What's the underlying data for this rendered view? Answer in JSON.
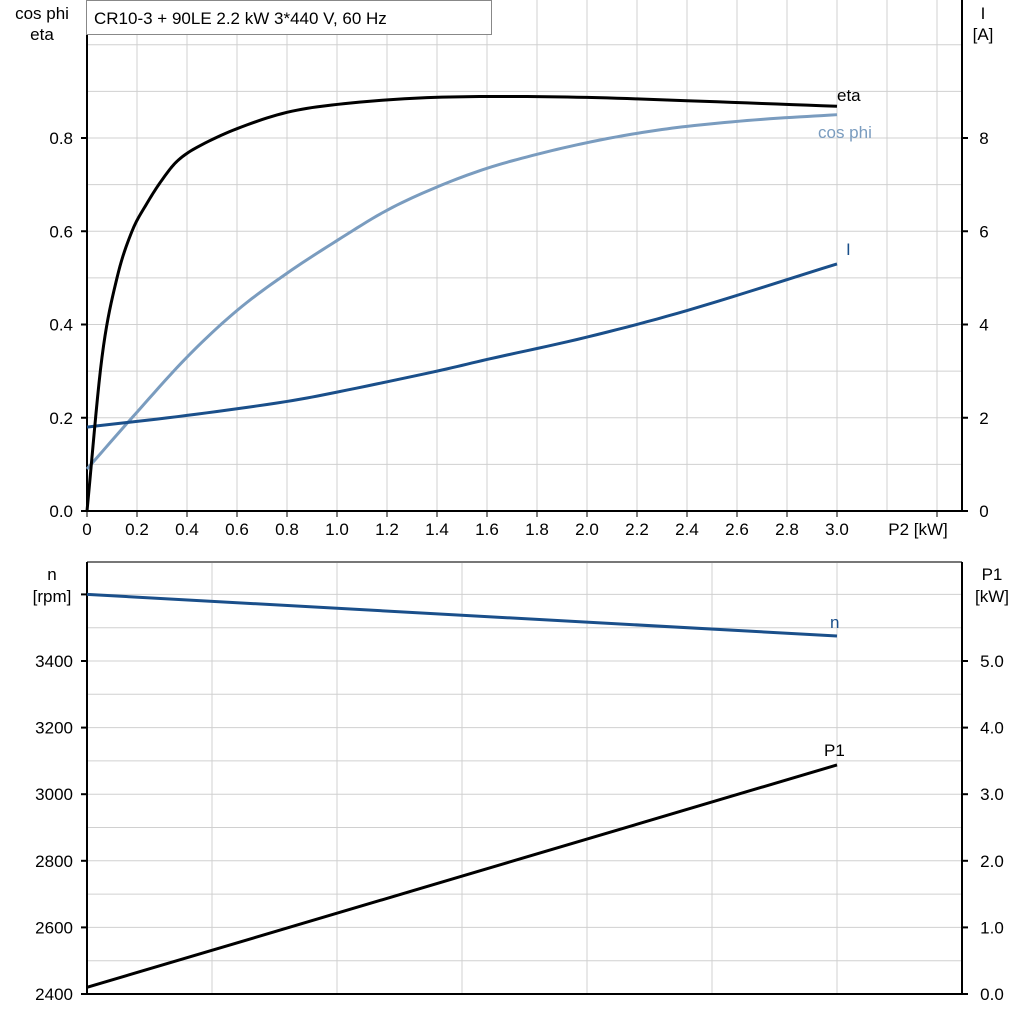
{
  "chart_data": [
    {
      "type": "line",
      "title": "CR10-3 + 90LE   2.2 kW   3*440 V, 60 Hz",
      "xlabel": "P2 [kW]",
      "ylabel_left": [
        "cos phi",
        "eta"
      ],
      "ylabel_right": [
        "I",
        "[A]"
      ],
      "xlim": [
        0,
        3.5
      ],
      "ylim_left": [
        0,
        1.1
      ],
      "ylim_right": [
        0,
        11
      ],
      "x_ticks": [
        "0",
        "0.2",
        "0.4",
        "0.6",
        "0.8",
        "1.0",
        "1.2",
        "1.4",
        "1.6",
        "1.8",
        "2.0",
        "2.2",
        "2.4",
        "2.6",
        "2.8",
        "3.0"
      ],
      "y_ticks_left": [
        "0.0",
        "0.2",
        "0.4",
        "0.6",
        "0.8"
      ],
      "y_ticks_right": [
        "0",
        "2",
        "4",
        "6",
        "8"
      ],
      "grid": true,
      "series": [
        {
          "name": "eta",
          "axis": "left",
          "color": "#000000",
          "x": [
            0,
            0.06,
            0.12,
            0.18,
            0.24,
            0.3,
            0.36,
            0.44,
            0.6,
            0.8,
            1.0,
            1.3,
            1.6,
            2.0,
            2.4,
            3.0
          ],
          "y": [
            0,
            0.33,
            0.5,
            0.6,
            0.66,
            0.71,
            0.75,
            0.78,
            0.82,
            0.855,
            0.872,
            0.885,
            0.889,
            0.887,
            0.88,
            0.868
          ]
        },
        {
          "name": "cos phi",
          "axis": "left",
          "color": "#7a9cbf",
          "x": [
            0,
            0.18,
            0.4,
            0.6,
            0.8,
            1.0,
            1.2,
            1.4,
            1.6,
            1.8,
            2.0,
            2.2,
            2.4,
            2.7,
            3.0
          ],
          "y": [
            0.09,
            0.2,
            0.33,
            0.43,
            0.51,
            0.58,
            0.645,
            0.695,
            0.735,
            0.765,
            0.79,
            0.81,
            0.825,
            0.84,
            0.85
          ]
        },
        {
          "name": "I",
          "axis": "right",
          "color": "#1a4f8a",
          "x": [
            0,
            0.4,
            0.8,
            1.0,
            1.4,
            1.6,
            2.0,
            2.4,
            3.0
          ],
          "y": [
            1.8,
            2.05,
            2.35,
            2.55,
            3.0,
            3.25,
            3.73,
            4.3,
            5.3
          ]
        }
      ]
    },
    {
      "type": "line",
      "ylabel_left": [
        "n",
        "[rpm]"
      ],
      "ylabel_right": [
        "P1",
        "[kW]"
      ],
      "xlim": [
        0,
        3.5
      ],
      "ylim_left": [
        2400,
        3700
      ],
      "ylim_right": [
        0,
        6.5
      ],
      "y_ticks_left": [
        "2400",
        "2600",
        "2800",
        "3000",
        "3200",
        "3400"
      ],
      "y_ticks_right": [
        "0.0",
        "1.0",
        "2.0",
        "3.0",
        "4.0",
        "5.0"
      ],
      "grid": true,
      "series": [
        {
          "name": "n",
          "axis": "left",
          "color": "#1a4f8a",
          "x": [
            0,
            3.0
          ],
          "y": [
            3600,
            3475
          ]
        },
        {
          "name": "P1",
          "axis": "right",
          "color": "#000000",
          "x": [
            0,
            3.0
          ],
          "y": [
            0.1,
            3.44
          ]
        }
      ]
    }
  ]
}
